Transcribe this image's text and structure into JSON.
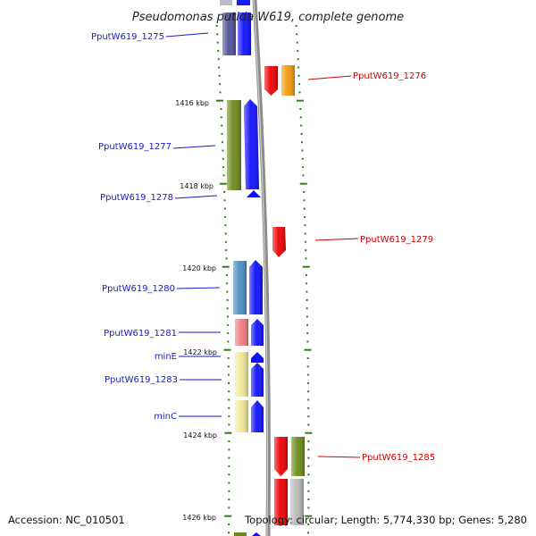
{
  "title": "Pseudomonas putida W619, complete genome",
  "footer": {
    "accession": "Accession: NC_010501",
    "topology": "Topology: circular; Length: 5,774,330 bp; Genes: 5,280"
  },
  "colors": {
    "backbone": "#8c8c8c",
    "tick": "#2e7d1e",
    "left_label": "#1a1ad0",
    "right_label": "#d00000"
  },
  "scale_labels": [
    "1416 kbp",
    "1418 kbp",
    "1420 kbp",
    "1422 kbp",
    "1424 kbp",
    "1426 kbp"
  ],
  "genes_left": [
    {
      "id": "g1275",
      "label": "PputW619_1275"
    },
    {
      "id": "g1277",
      "label": "PputW619_1277"
    },
    {
      "id": "g1278",
      "label": "PputW619_1278"
    },
    {
      "id": "g1280",
      "label": "PputW619_1280"
    },
    {
      "id": "g1281",
      "label": "PputW619_1281"
    },
    {
      "id": "gminE",
      "label": "minE"
    },
    {
      "id": "g1283",
      "label": "PputW619_1283"
    },
    {
      "id": "gminC",
      "label": "minC"
    }
  ],
  "genes_right": [
    {
      "id": "g1276",
      "label": "PputW619_1276"
    },
    {
      "id": "g1279",
      "label": "PputW619_1279"
    },
    {
      "id": "g1285",
      "label": "PputW619_1285"
    }
  ]
}
